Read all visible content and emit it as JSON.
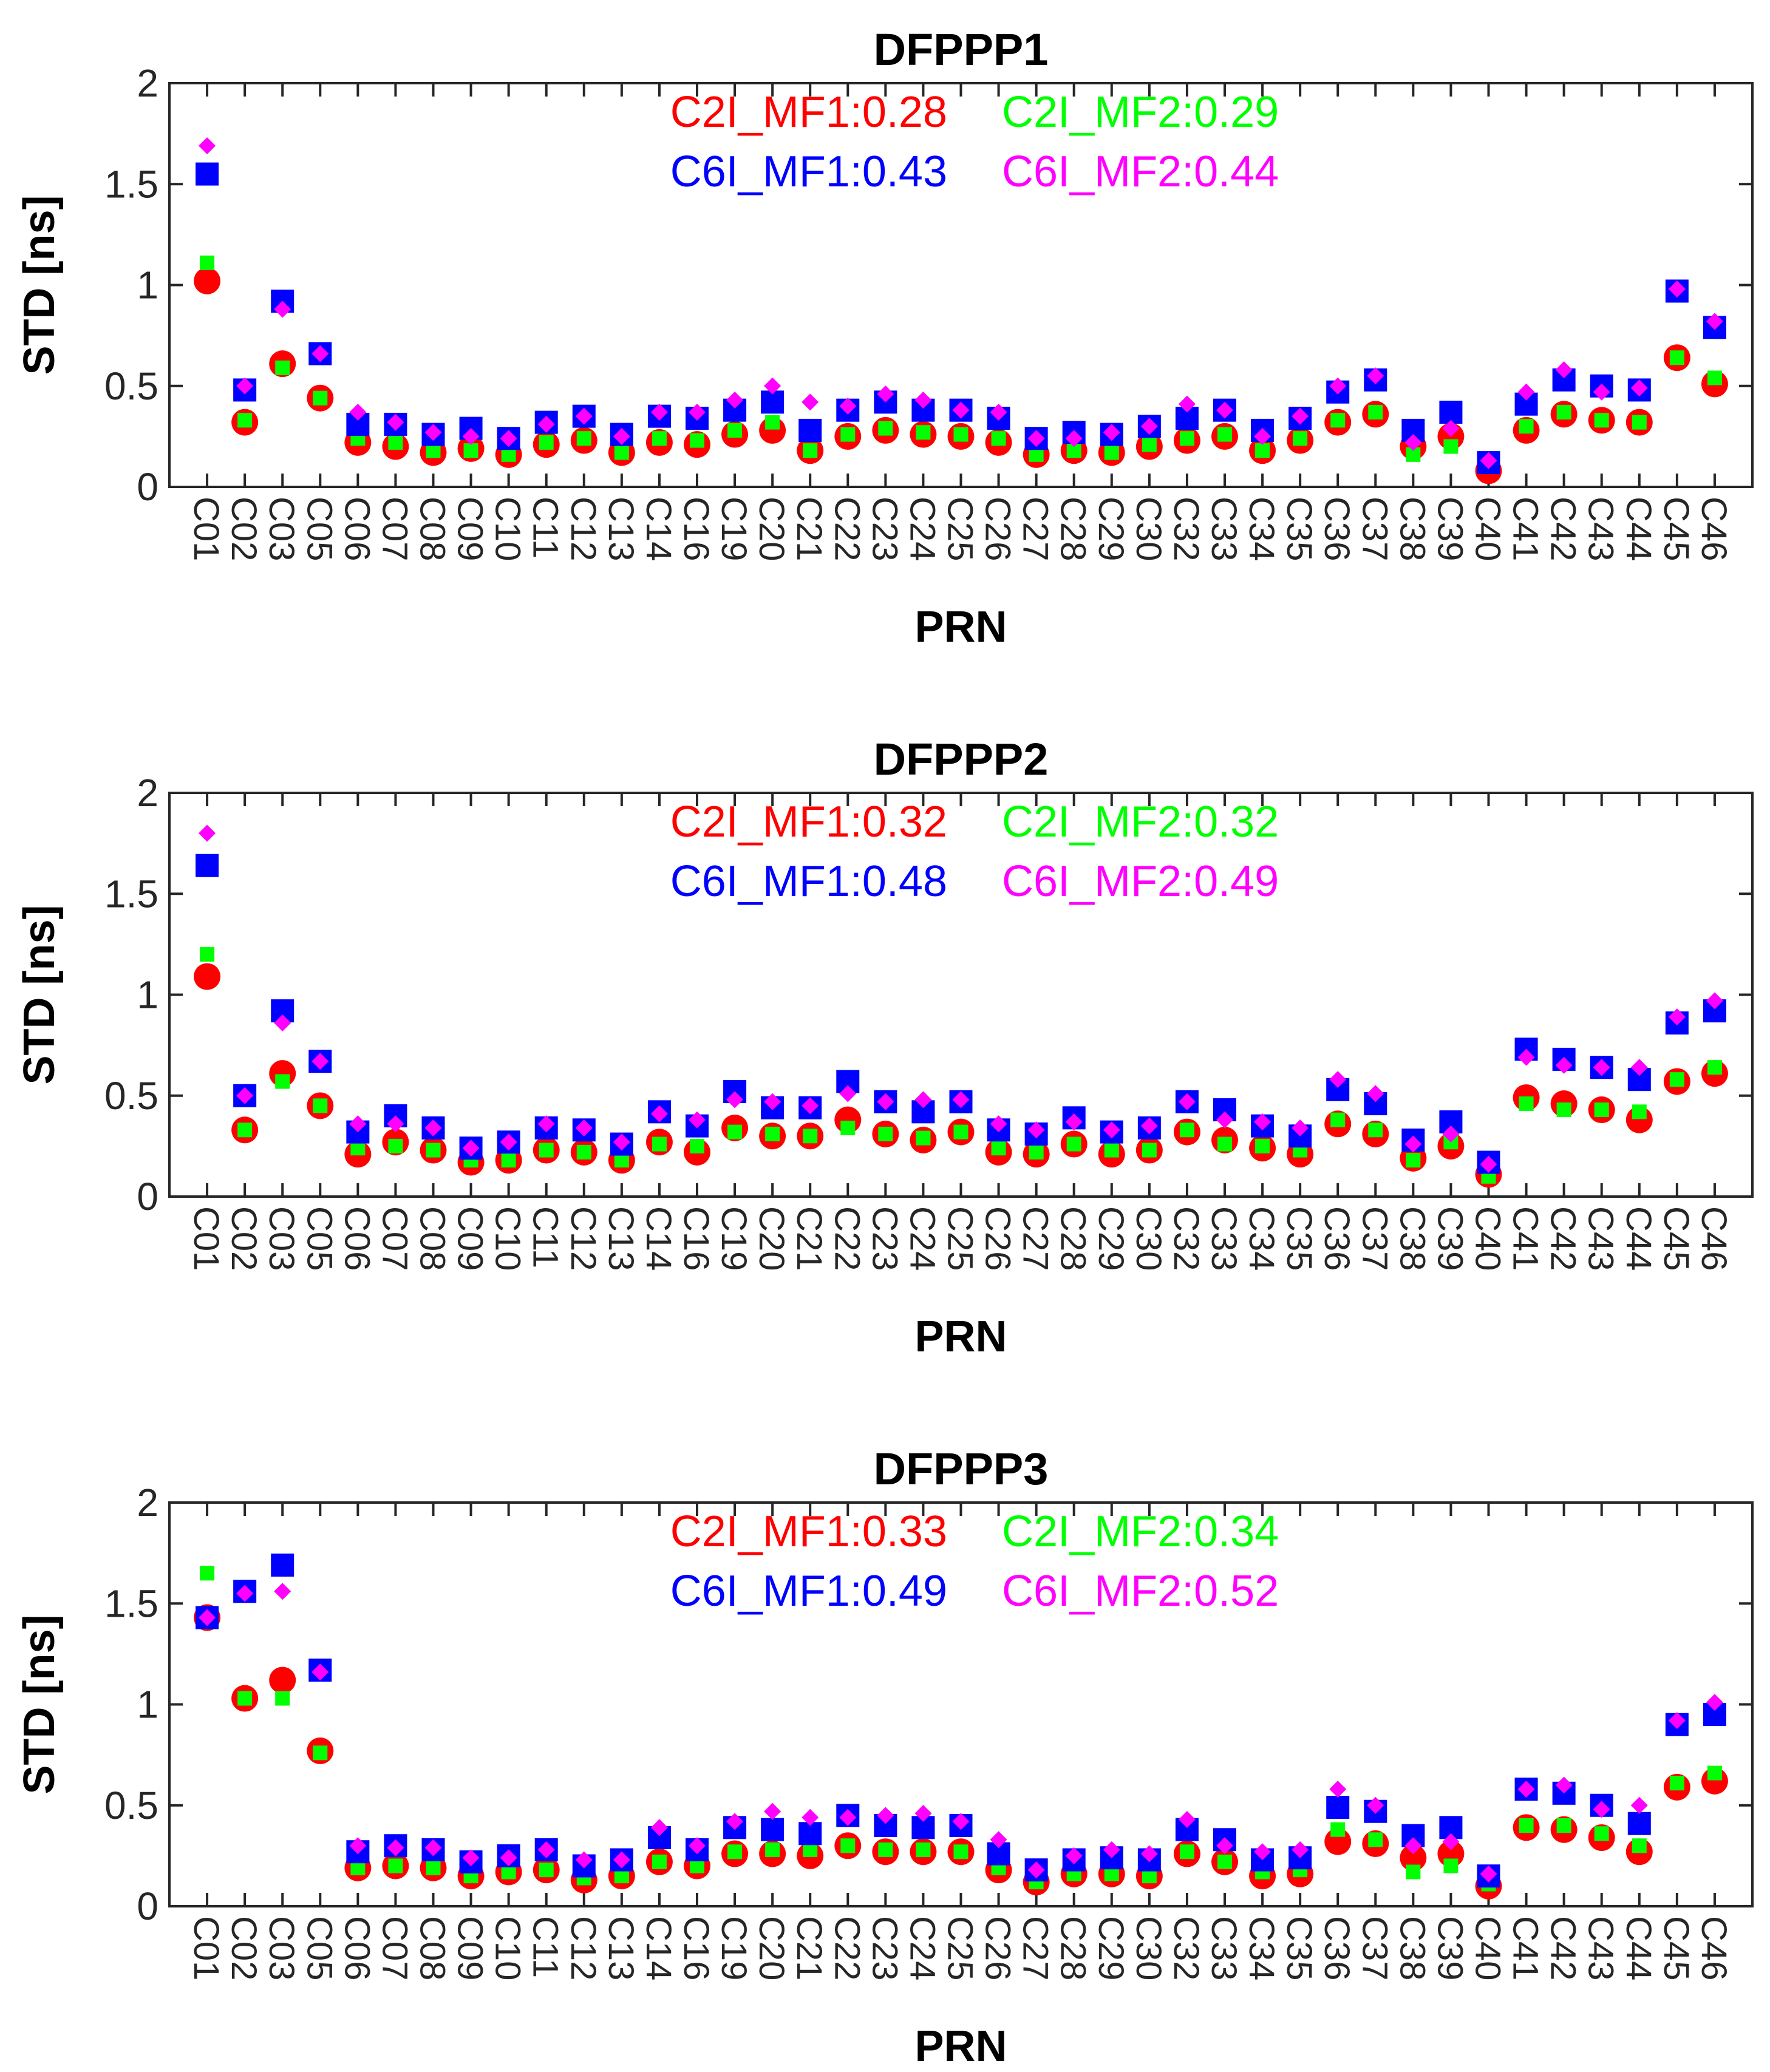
{
  "chart_data": [
    {
      "type": "scatter",
      "title": "DFPPP1",
      "xlabel": "PRN",
      "ylabel": "STD [ns]",
      "ylim": [
        0,
        2
      ],
      "yticks": [
        "0",
        "0.5",
        "1",
        "1.5",
        "2"
      ],
      "categories": [
        "C01",
        "C02",
        "C03",
        "C05",
        "C06",
        "C07",
        "C08",
        "C09",
        "C10",
        "C11",
        "C12",
        "C13",
        "C14",
        "C16",
        "C19",
        "C20",
        "C21",
        "C22",
        "C23",
        "C24",
        "C25",
        "C26",
        "C27",
        "C28",
        "C29",
        "C30",
        "C32",
        "C33",
        "C34",
        "C35",
        "C36",
        "C37",
        "C38",
        "C39",
        "C40",
        "C41",
        "C42",
        "C43",
        "C44",
        "C45",
        "C46"
      ],
      "legend": [
        "C2I_MF1:0.28",
        "C2I_MF2:0.29",
        "C6I_MF1:0.43",
        "C6I_MF2:0.44"
      ],
      "series": [
        {
          "name": "C2I_MF1",
          "color": "#ff0000",
          "marker": "circle",
          "values": [
            1.02,
            0.32,
            0.61,
            0.44,
            0.22,
            0.2,
            0.17,
            0.19,
            0.16,
            0.21,
            0.23,
            0.17,
            0.22,
            0.21,
            0.26,
            0.28,
            0.18,
            0.25,
            0.28,
            0.26,
            0.25,
            0.22,
            0.16,
            0.18,
            0.17,
            0.2,
            0.23,
            0.25,
            0.18,
            0.23,
            0.32,
            0.36,
            0.2,
            0.25,
            0.08,
            0.28,
            0.36,
            0.33,
            0.32,
            0.64,
            0.51
          ]
        },
        {
          "name": "C2I_MF2",
          "color": "#00ff00",
          "marker": "square-small",
          "values": [
            1.11,
            0.33,
            0.59,
            0.44,
            0.24,
            0.22,
            0.18,
            0.18,
            0.16,
            0.22,
            0.24,
            0.17,
            0.24,
            0.23,
            0.28,
            0.32,
            0.18,
            0.26,
            0.29,
            0.27,
            0.26,
            0.24,
            0.16,
            0.18,
            0.17,
            0.21,
            0.24,
            0.26,
            0.18,
            0.24,
            0.33,
            0.37,
            0.16,
            0.2,
            0.1,
            0.3,
            0.37,
            0.33,
            0.32,
            0.64,
            0.54
          ]
        },
        {
          "name": "C6I_MF1",
          "color": "#0000ff",
          "marker": "square",
          "values": [
            1.55,
            0.48,
            0.92,
            0.66,
            0.31,
            0.31,
            0.26,
            0.29,
            0.24,
            0.32,
            0.35,
            0.26,
            0.35,
            0.34,
            0.38,
            0.42,
            0.28,
            0.38,
            0.42,
            0.38,
            0.38,
            0.34,
            0.24,
            0.27,
            0.26,
            0.3,
            0.34,
            0.38,
            0.28,
            0.34,
            0.47,
            0.53,
            0.28,
            0.37,
            0.12,
            0.41,
            0.53,
            0.5,
            0.48,
            0.97,
            0.79
          ]
        },
        {
          "name": "C6I_MF2",
          "color": "#ff00ff",
          "marker": "diamond",
          "values": [
            1.69,
            0.5,
            0.88,
            0.66,
            0.37,
            0.32,
            0.27,
            0.25,
            0.24,
            0.31,
            0.35,
            0.25,
            0.37,
            0.37,
            0.43,
            0.5,
            0.42,
            0.4,
            0.46,
            0.43,
            0.38,
            0.37,
            0.24,
            0.24,
            0.27,
            0.3,
            0.41,
            0.38,
            0.25,
            0.35,
            0.5,
            0.55,
            0.22,
            0.29,
            0.13,
            0.47,
            0.58,
            0.47,
            0.49,
            0.98,
            0.82
          ]
        }
      ]
    },
    {
      "type": "scatter",
      "title": "DFPPP2",
      "xlabel": "PRN",
      "ylabel": "STD [ns]",
      "ylim": [
        0,
        2
      ],
      "yticks": [
        "0",
        "0.5",
        "1",
        "1.5",
        "2"
      ],
      "categories": [
        "C01",
        "C02",
        "C03",
        "C05",
        "C06",
        "C07",
        "C08",
        "C09",
        "C10",
        "C11",
        "C12",
        "C13",
        "C14",
        "C16",
        "C19",
        "C20",
        "C21",
        "C22",
        "C23",
        "C24",
        "C25",
        "C26",
        "C27",
        "C28",
        "C29",
        "C30",
        "C32",
        "C33",
        "C34",
        "C35",
        "C36",
        "C37",
        "C38",
        "C39",
        "C40",
        "C41",
        "C42",
        "C43",
        "C44",
        "C45",
        "C46"
      ],
      "legend": [
        "C2I_MF1:0.32",
        "C2I_MF2:0.32",
        "C6I_MF1:0.48",
        "C6I_MF2:0.49"
      ],
      "series": [
        {
          "name": "C2I_MF1",
          "color": "#ff0000",
          "marker": "circle",
          "values": [
            1.09,
            0.33,
            0.61,
            0.45,
            0.21,
            0.27,
            0.23,
            0.17,
            0.18,
            0.23,
            0.22,
            0.18,
            0.27,
            0.22,
            0.34,
            0.3,
            0.3,
            0.38,
            0.31,
            0.28,
            0.32,
            0.22,
            0.21,
            0.26,
            0.21,
            0.23,
            0.32,
            0.28,
            0.24,
            0.21,
            0.36,
            0.31,
            0.19,
            0.25,
            0.11,
            0.49,
            0.46,
            0.43,
            0.38,
            0.57,
            0.61
          ]
        },
        {
          "name": "C2I_MF2",
          "color": "#00ff00",
          "marker": "square-small",
          "values": [
            1.2,
            0.33,
            0.57,
            0.45,
            0.24,
            0.25,
            0.23,
            0.18,
            0.18,
            0.23,
            0.22,
            0.18,
            0.26,
            0.25,
            0.32,
            0.31,
            0.3,
            0.34,
            0.31,
            0.29,
            0.32,
            0.24,
            0.22,
            0.26,
            0.23,
            0.23,
            0.33,
            0.26,
            0.25,
            0.23,
            0.38,
            0.33,
            0.18,
            0.27,
            0.1,
            0.46,
            0.43,
            0.43,
            0.42,
            0.58,
            0.64
          ]
        },
        {
          "name": "C6I_MF1",
          "color": "#0000ff",
          "marker": "square",
          "values": [
            1.64,
            0.5,
            0.92,
            0.67,
            0.32,
            0.4,
            0.34,
            0.24,
            0.27,
            0.34,
            0.33,
            0.26,
            0.42,
            0.35,
            0.52,
            0.44,
            0.44,
            0.57,
            0.47,
            0.42,
            0.47,
            0.33,
            0.31,
            0.39,
            0.32,
            0.34,
            0.47,
            0.43,
            0.35,
            0.3,
            0.53,
            0.46,
            0.28,
            0.37,
            0.17,
            0.73,
            0.68,
            0.64,
            0.58,
            0.86,
            0.92
          ]
        },
        {
          "name": "C6I_MF2",
          "color": "#ff00ff",
          "marker": "diamond",
          "values": [
            1.8,
            0.5,
            0.86,
            0.67,
            0.36,
            0.36,
            0.34,
            0.24,
            0.27,
            0.36,
            0.34,
            0.27,
            0.41,
            0.38,
            0.48,
            0.47,
            0.45,
            0.51,
            0.47,
            0.48,
            0.48,
            0.36,
            0.33,
            0.37,
            0.33,
            0.35,
            0.47,
            0.38,
            0.37,
            0.34,
            0.58,
            0.51,
            0.26,
            0.31,
            0.16,
            0.69,
            0.65,
            0.64,
            0.64,
            0.89,
            0.97
          ]
        }
      ]
    },
    {
      "type": "scatter",
      "title": "DFPPP3",
      "xlabel": "PRN",
      "ylabel": "STD [ns]",
      "ylim": [
        0,
        2
      ],
      "yticks": [
        "0",
        "0.5",
        "1",
        "1.5",
        "2"
      ],
      "categories": [
        "C01",
        "C02",
        "C03",
        "C05",
        "C06",
        "C07",
        "C08",
        "C09",
        "C10",
        "C11",
        "C12",
        "C13",
        "C14",
        "C16",
        "C19",
        "C20",
        "C21",
        "C22",
        "C23",
        "C24",
        "C25",
        "C26",
        "C27",
        "C28",
        "C29",
        "C30",
        "C32",
        "C33",
        "C34",
        "C35",
        "C36",
        "C37",
        "C38",
        "C39",
        "C40",
        "C41",
        "C42",
        "C43",
        "C44",
        "C45",
        "C46"
      ],
      "legend": [
        "C2I_MF1:0.33",
        "C2I_MF2:0.34",
        "C6I_MF1:0.49",
        "C6I_MF2:0.52"
      ],
      "series": [
        {
          "name": "C2I_MF1",
          "color": "#ff0000",
          "marker": "circle",
          "values": [
            1.43,
            1.03,
            1.12,
            0.77,
            0.19,
            0.2,
            0.19,
            0.15,
            0.17,
            0.18,
            0.13,
            0.15,
            0.22,
            0.2,
            0.26,
            0.26,
            0.25,
            0.3,
            0.27,
            0.27,
            0.27,
            0.18,
            0.12,
            0.16,
            0.16,
            0.15,
            0.26,
            0.22,
            0.15,
            0.16,
            0.32,
            0.31,
            0.24,
            0.26,
            0.1,
            0.39,
            0.38,
            0.34,
            0.27,
            0.59,
            0.62
          ]
        },
        {
          "name": "C2I_MF2",
          "color": "#00ff00",
          "marker": "square-small",
          "values": [
            1.65,
            1.03,
            1.03,
            0.76,
            0.19,
            0.2,
            0.19,
            0.15,
            0.17,
            0.18,
            0.14,
            0.15,
            0.22,
            0.2,
            0.27,
            0.28,
            0.28,
            0.3,
            0.28,
            0.28,
            0.27,
            0.19,
            0.12,
            0.16,
            0.16,
            0.15,
            0.27,
            0.22,
            0.17,
            0.18,
            0.38,
            0.33,
            0.17,
            0.2,
            0.11,
            0.4,
            0.4,
            0.36,
            0.3,
            0.61,
            0.66
          ]
        },
        {
          "name": "C6I_MF1",
          "color": "#0000ff",
          "marker": "square",
          "values": [
            1.43,
            1.56,
            1.69,
            1.17,
            0.27,
            0.3,
            0.28,
            0.22,
            0.25,
            0.28,
            0.2,
            0.23,
            0.34,
            0.28,
            0.39,
            0.38,
            0.36,
            0.45,
            0.4,
            0.39,
            0.4,
            0.26,
            0.18,
            0.23,
            0.24,
            0.23,
            0.38,
            0.33,
            0.23,
            0.24,
            0.49,
            0.47,
            0.35,
            0.39,
            0.15,
            0.58,
            0.56,
            0.5,
            0.41,
            0.9,
            0.95
          ]
        },
        {
          "name": "C6I_MF2",
          "color": "#ff00ff",
          "marker": "diamond",
          "values": [
            1.43,
            1.55,
            1.56,
            1.16,
            0.3,
            0.29,
            0.29,
            0.24,
            0.24,
            0.28,
            0.23,
            0.23,
            0.39,
            0.3,
            0.42,
            0.47,
            0.44,
            0.44,
            0.45,
            0.46,
            0.42,
            0.33,
            0.18,
            0.25,
            0.28,
            0.26,
            0.43,
            0.3,
            0.27,
            0.28,
            0.58,
            0.5,
            0.3,
            0.32,
            0.16,
            0.58,
            0.6,
            0.48,
            0.5,
            0.92,
            1.01
          ]
        }
      ]
    }
  ]
}
